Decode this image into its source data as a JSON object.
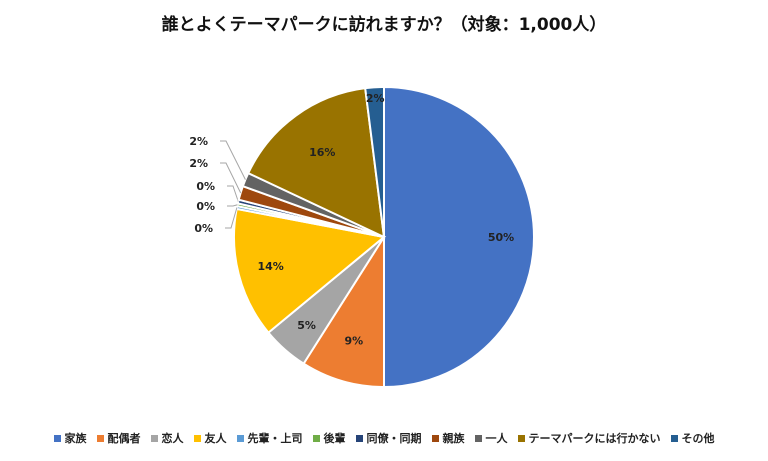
{
  "title": "誰とよくテーマパークに訪れますか？（対象：1,000人）",
  "chart_data": {
    "type": "pie",
    "title": "誰とよくテーマパークに訪れますか？（対象：1,000人）",
    "legend_position": "bottom",
    "slices": [
      {
        "name": "家族",
        "value": 50,
        "label": "50%",
        "color": "#4472C4"
      },
      {
        "name": "配偶者",
        "value": 9,
        "label": "9%",
        "color": "#ED7D31"
      },
      {
        "name": "恋人",
        "value": 5,
        "label": "5%",
        "color": "#A5A5A5"
      },
      {
        "name": "友人",
        "value": 14,
        "label": "14%",
        "color": "#FFC000"
      },
      {
        "name": "先輩・上司",
        "value": 0.3,
        "label": "0%",
        "color": "#5B9BD5"
      },
      {
        "name": "後輩",
        "value": 0.3,
        "label": "0%",
        "color": "#70AD47"
      },
      {
        "name": "同僚・同期",
        "value": 0.4,
        "label": "0%",
        "color": "#264478"
      },
      {
        "name": "親族",
        "value": 1.5,
        "label": "2%",
        "color": "#9E480E"
      },
      {
        "name": "一人",
        "value": 1.5,
        "label": "2%",
        "color": "#636363"
      },
      {
        "name": "テーマパークには行かない",
        "value": 16,
        "label": "16%",
        "color": "#997300"
      },
      {
        "name": "その他",
        "value": 2,
        "label": "2%",
        "color": "#255E91"
      }
    ]
  }
}
